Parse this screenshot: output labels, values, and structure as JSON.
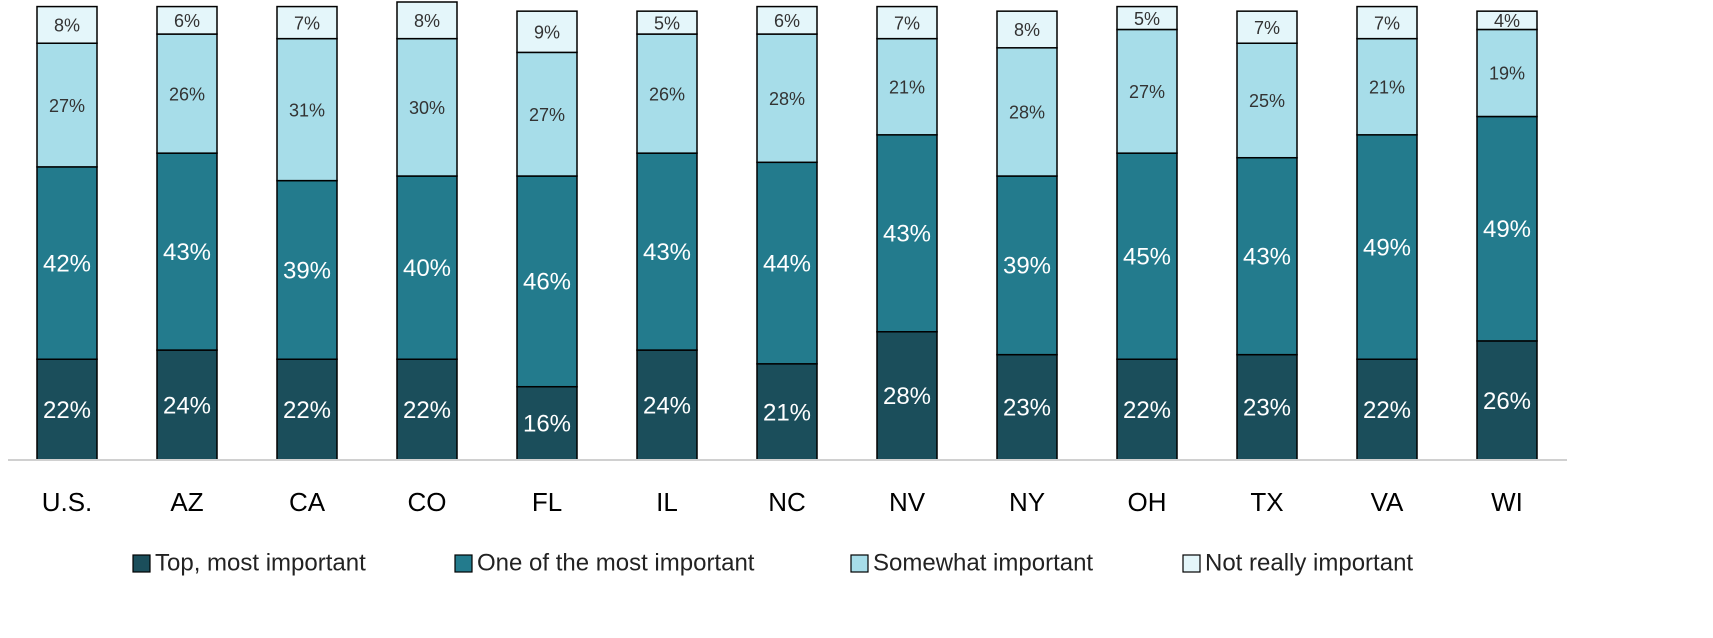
{
  "chart_data": {
    "type": "stacked_bar",
    "categories": [
      "U.S.",
      "AZ",
      "CA",
      "CO",
      "FL",
      "IL",
      "NC",
      "NV",
      "NY",
      "OH",
      "TX",
      "VA",
      "WI"
    ],
    "ylim": [
      0,
      100
    ],
    "series": [
      {
        "name": "Top, most important",
        "color": "#1b4e5b",
        "values": [
          22,
          24,
          22,
          22,
          16,
          24,
          21,
          28,
          23,
          22,
          23,
          22,
          26
        ],
        "value_labels": [
          "22%",
          "24%",
          "22%",
          "22%",
          "16%",
          "24%",
          "21%",
          "28%",
          "23%",
          "22%",
          "23%",
          "22%",
          "26%"
        ]
      },
      {
        "name": "One of the most important",
        "color": "#237b8d",
        "values": [
          42,
          43,
          39,
          40,
          46,
          43,
          44,
          43,
          39,
          45,
          43,
          49,
          49
        ],
        "value_labels": [
          "42%",
          "43%",
          "39%",
          "40%",
          "46%",
          "43%",
          "44%",
          "43%",
          "39%",
          "45%",
          "43%",
          "49%",
          "49%"
        ]
      },
      {
        "name": "Somewhat important",
        "color": "#a7dde9",
        "values": [
          27,
          26,
          31,
          30,
          27,
          26,
          28,
          21,
          28,
          27,
          25,
          21,
          19
        ],
        "value_labels": [
          "27%",
          "26%",
          "31%",
          "30%",
          "27%",
          "26%",
          "28%",
          "21%",
          "28%",
          "27%",
          "25%",
          "21%",
          "19%"
        ]
      },
      {
        "name": "Not really important",
        "color": "#e4f6fa",
        "values": [
          8,
          6,
          7,
          8,
          9,
          5,
          6,
          7,
          8,
          5,
          7,
          7,
          4
        ],
        "value_labels": [
          "8%",
          "6%",
          "7%",
          "8%",
          "9%",
          "5%",
          "6%",
          "7%",
          "8%",
          "5%",
          "7%",
          "7%",
          "4%"
        ]
      }
    ]
  }
}
